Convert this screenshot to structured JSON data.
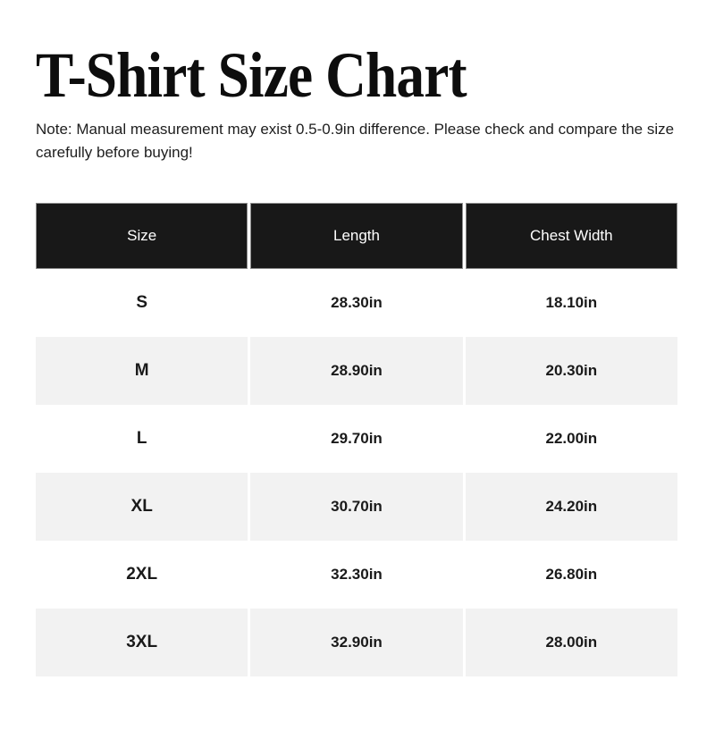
{
  "page": {
    "title": "T-Shirt Size Chart",
    "note_line1": "Note: Manual measurement may exist 0.5-0.9in difference. Please check and compare the size",
    "note_line2": "carefully before buying!"
  },
  "colors": {
    "header_bg": "#181818",
    "header_text": "#ffffff",
    "header_border": "#8d8d8d",
    "row_alt_bg": "#f2f2f2",
    "row_bg": "#ffffff",
    "body_text": "#1a1a1a"
  },
  "chart_data": {
    "type": "table",
    "title": "T-Shirt Size Chart",
    "columns": [
      "Size",
      "Length",
      "Chest Width"
    ],
    "rows": [
      [
        "S",
        "28.30in",
        "18.10in"
      ],
      [
        "M",
        "28.90in",
        "20.30in"
      ],
      [
        "L",
        "29.70in",
        "22.00in"
      ],
      [
        "XL",
        "30.70in",
        "24.20in"
      ],
      [
        "2XL",
        "32.30in",
        "26.80in"
      ],
      [
        "3XL",
        "32.90in",
        "28.00in"
      ]
    ]
  }
}
